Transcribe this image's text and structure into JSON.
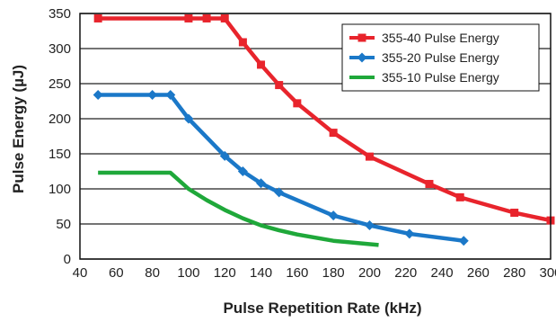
{
  "chart_data": {
    "type": "line",
    "title": "",
    "xlabel": "Pulse Repetition Rate (kHz)",
    "ylabel": "Pulse Energy (µJ)",
    "xlim": [
      40,
      300
    ],
    "ylim": [
      0,
      350
    ],
    "xticks": [
      40,
      60,
      80,
      100,
      120,
      140,
      160,
      180,
      200,
      220,
      240,
      260,
      280,
      300
    ],
    "yticks": [
      0,
      50,
      100,
      150,
      200,
      250,
      300,
      350
    ],
    "grid": "horizontal",
    "legend_position": "top-right",
    "series": [
      {
        "name": "355-40 Pulse Energy",
        "color": "#e8242c",
        "marker": "square",
        "points": [
          [
            50,
            343
          ],
          [
            100,
            343
          ],
          [
            110,
            343
          ],
          [
            120,
            343
          ],
          [
            130,
            309
          ],
          [
            140,
            277
          ],
          [
            150,
            248
          ],
          [
            160,
            222
          ],
          [
            180,
            180
          ],
          [
            200,
            146
          ],
          [
            233,
            107
          ],
          [
            250,
            88
          ],
          [
            280,
            66
          ],
          [
            300,
            55
          ]
        ]
      },
      {
        "name": "355-20 Pulse Energy",
        "color": "#1b78c8",
        "marker": "diamond",
        "points": [
          [
            50,
            234
          ],
          [
            80,
            234
          ],
          [
            90,
            234
          ],
          [
            100,
            200
          ],
          [
            120,
            147
          ],
          [
            130,
            125
          ],
          [
            140,
            108
          ],
          [
            150,
            95
          ],
          [
            180,
            62
          ],
          [
            200,
            48
          ],
          [
            222,
            36
          ],
          [
            252,
            26
          ]
        ]
      },
      {
        "name": "355-10 Pulse Energy",
        "color": "#1fa83a",
        "marker": "none",
        "points": [
          [
            50,
            123
          ],
          [
            90,
            123
          ],
          [
            100,
            100
          ],
          [
            110,
            84
          ],
          [
            120,
            70
          ],
          [
            130,
            58
          ],
          [
            140,
            48
          ],
          [
            150,
            41
          ],
          [
            160,
            35
          ],
          [
            180,
            26
          ],
          [
            205,
            20
          ]
        ]
      }
    ]
  }
}
